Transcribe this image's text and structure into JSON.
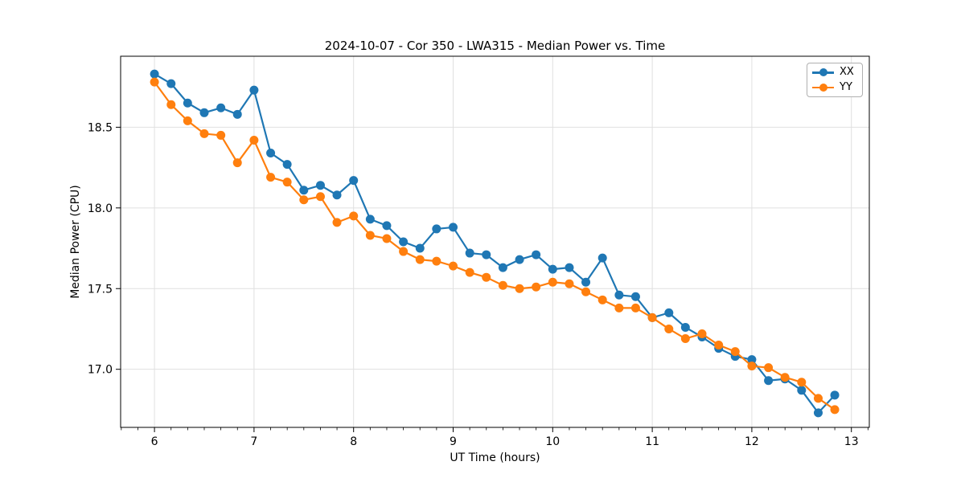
{
  "figure": {
    "title": "2024-10-07 - Cor 350 - LWA315 - Median Power vs. Time"
  },
  "chart_data": {
    "type": "line",
    "title": "2024-10-07 - Cor 350 - LWA315 - Median Power vs. Time",
    "xlabel": "UT Time (hours)",
    "ylabel": "Median Power (CPU)",
    "xlim": [
      5.66,
      13.18
    ],
    "ylim": [
      16.64,
      18.94
    ],
    "x_ticks": [
      6,
      7,
      8,
      9,
      10,
      11,
      12,
      13
    ],
    "x_ticklabels": [
      "6",
      "7",
      "8",
      "9",
      "10",
      "11",
      "12",
      "13"
    ],
    "x_minor_tick_interval": 0.1667,
    "y_ticks": [
      17.0,
      17.5,
      18.0,
      18.5
    ],
    "y_ticklabels": [
      "17.0",
      "17.5",
      "18.0",
      "18.5"
    ],
    "grid": "major",
    "grid_color": "#e0e0e0",
    "legend_position": "upper right",
    "marker": "o",
    "x": [
      6.0,
      6.167,
      6.333,
      6.5,
      6.667,
      6.833,
      7.0,
      7.167,
      7.333,
      7.5,
      7.667,
      7.833,
      8.0,
      8.167,
      8.333,
      8.5,
      8.667,
      8.833,
      9.0,
      9.167,
      9.333,
      9.5,
      9.667,
      9.833,
      10.0,
      10.167,
      10.333,
      10.5,
      10.667,
      10.833,
      11.0,
      11.167,
      11.333,
      11.5,
      11.667,
      11.833,
      12.0,
      12.167,
      12.333,
      12.5,
      12.667,
      12.833
    ],
    "series": [
      {
        "name": "XX",
        "color": "#1f77b4",
        "values": [
          18.83,
          18.77,
          18.65,
          18.59,
          18.62,
          18.58,
          18.73,
          18.34,
          18.27,
          18.11,
          18.14,
          18.08,
          18.17,
          17.93,
          17.89,
          17.79,
          17.75,
          17.87,
          17.88,
          17.72,
          17.71,
          17.63,
          17.68,
          17.71,
          17.62,
          17.63,
          17.54,
          17.69,
          17.46,
          17.45,
          17.32,
          17.35,
          17.26,
          17.2,
          17.13,
          17.08,
          17.06,
          16.93,
          16.94,
          16.87,
          16.73,
          16.84
        ]
      },
      {
        "name": "YY",
        "color": "#ff7f0e",
        "values": [
          18.78,
          18.64,
          18.54,
          18.46,
          18.45,
          18.28,
          18.42,
          18.19,
          18.16,
          18.05,
          18.07,
          17.91,
          17.95,
          17.83,
          17.81,
          17.73,
          17.68,
          17.67,
          17.64,
          17.6,
          17.57,
          17.52,
          17.5,
          17.51,
          17.54,
          17.53,
          17.48,
          17.43,
          17.38,
          17.38,
          17.32,
          17.25,
          17.19,
          17.22,
          17.15,
          17.11,
          17.02,
          17.01,
          16.95,
          16.92,
          16.82,
          16.75
        ]
      }
    ]
  }
}
